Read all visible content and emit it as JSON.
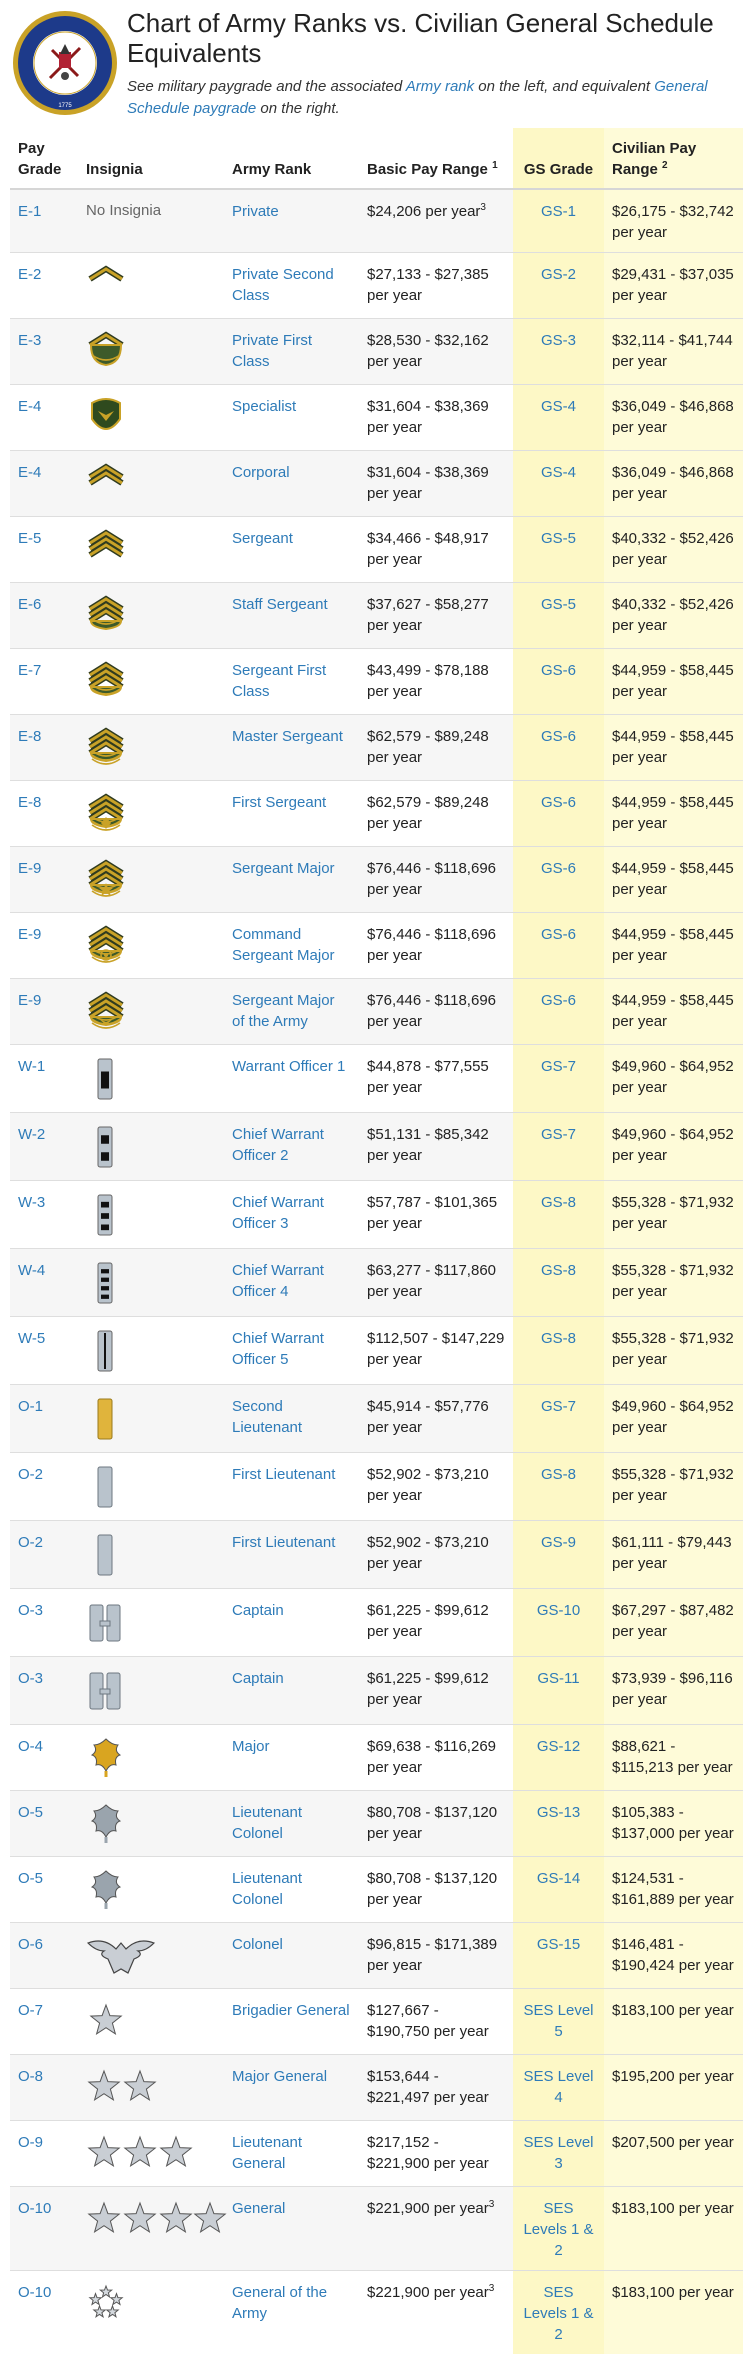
{
  "header": {
    "title": "Chart of Army Ranks vs. Civilian General Schedule Equivalents",
    "subtitle_pre": "See military paygrade and the associated ",
    "subtitle_link1": "Army rank",
    "subtitle_mid": " on the left, and equivalent ",
    "subtitle_link2": "General Schedule paygrade",
    "subtitle_post": " on the right.",
    "seal_text": "DEPARTMENT OF THE ARMY · UNITED STATES OF AMERICA · 1775"
  },
  "columns": {
    "pay_grade": "Pay Grade",
    "insignia": "Insignia",
    "army_rank": "Army Rank",
    "basic_pay": "Basic Pay Range",
    "basic_pay_note": "1",
    "gs_grade": "GS Grade",
    "civilian_pay": "Civilian Pay Range",
    "civilian_pay_note": "2"
  },
  "colors": {
    "link": "#2e7bb8",
    "gs_highlight": "#fdf8c6",
    "row_alt": "#f6f6f6"
  },
  "rows": [
    {
      "grade": "E-1",
      "insignia": "none",
      "insignia_text": "No Insignia",
      "rank": "Private",
      "basic": "$24,206 per year",
      "basic_note": "3",
      "gs": "GS-1",
      "civ": "$26,175 - $32,742 per year"
    },
    {
      "grade": "E-2",
      "insignia": "chevron-1",
      "rank": "Private Second Class",
      "basic": "$27,133 - $27,385 per year",
      "gs": "GS-2",
      "civ": "$29,431 - $37,035 per year"
    },
    {
      "grade": "E-3",
      "insignia": "chevron-1-rocker",
      "rank": "Private First Class",
      "basic": "$28,530 - $32,162 per year",
      "gs": "GS-3",
      "civ": "$32,114 - $41,744 per year"
    },
    {
      "grade": "E-4",
      "insignia": "specialist-eagle",
      "rank": "Specialist",
      "basic": "$31,604 - $38,369 per year",
      "gs": "GS-4",
      "civ": "$36,049 - $46,868 per year"
    },
    {
      "grade": "E-4",
      "insignia": "chevron-2",
      "rank": "Corporal",
      "basic": "$31,604 - $38,369 per year",
      "gs": "GS-4",
      "civ": "$36,049 - $46,868 per year"
    },
    {
      "grade": "E-5",
      "insignia": "chevron-3",
      "rank": "Sergeant",
      "basic": "$34,466 - $48,917 per year",
      "gs": "GS-5",
      "civ": "$40,332 - $52,426 per year"
    },
    {
      "grade": "E-6",
      "insignia": "chevron-3-rocker-1",
      "rank": "Staff Sergeant",
      "basic": "$37,627 - $58,277 per year",
      "gs": "GS-5",
      "civ": "$40,332 - $52,426 per year"
    },
    {
      "grade": "E-7",
      "insignia": "chevron-3-rocker-2",
      "rank": "Sergeant First Class",
      "basic": "$43,499 - $78,188 per year",
      "gs": "GS-6",
      "civ": "$44,959 - $58,445 per year"
    },
    {
      "grade": "E-8",
      "insignia": "chevron-3-rocker-3",
      "rank": "Master Sergeant",
      "basic": "$62,579 - $89,248 per year",
      "gs": "GS-6",
      "civ": "$44,959 - $58,445 per year"
    },
    {
      "grade": "E-8",
      "insignia": "chevron-3-rocker-3-diamond",
      "rank": "First Sergeant",
      "basic": "$62,579 - $89,248 per year",
      "gs": "GS-6",
      "civ": "$44,959 - $58,445 per year"
    },
    {
      "grade": "E-9",
      "insignia": "chevron-3-rocker-3-star",
      "rank": "Sergeant Major",
      "basic": "$76,446 - $118,696 per year",
      "gs": "GS-6",
      "civ": "$44,959 - $58,445 per year"
    },
    {
      "grade": "E-9",
      "insignia": "chevron-3-rocker-3-wreath",
      "rank": "Command Sergeant Major",
      "basic": "$76,446 - $118,696 per year",
      "gs": "GS-6",
      "civ": "$44,959 - $58,445 per year"
    },
    {
      "grade": "E-9",
      "insignia": "chevron-3-rocker-3-eagle",
      "rank": "Sergeant Major of the Army",
      "basic": "$76,446 - $118,696 per year",
      "gs": "GS-6",
      "civ": "$44,959 - $58,445 per year"
    },
    {
      "grade": "W-1",
      "insignia": "warrant-1",
      "rank": "Warrant Officer 1",
      "basic": "$44,878 - $77,555 per year",
      "gs": "GS-7",
      "civ": "$49,960 - $64,952 per year"
    },
    {
      "grade": "W-2",
      "insignia": "warrant-2",
      "rank": "Chief Warrant Officer 2",
      "basic": "$51,131 - $85,342 per year",
      "gs": "GS-7",
      "civ": "$49,960 - $64,952 per year"
    },
    {
      "grade": "W-3",
      "insignia": "warrant-3",
      "rank": "Chief Warrant Officer 3",
      "basic": "$57,787 - $101,365 per year",
      "gs": "GS-8",
      "civ": "$55,328 - $71,932 per year"
    },
    {
      "grade": "W-4",
      "insignia": "warrant-4",
      "rank": "Chief Warrant Officer 4",
      "basic": "$63,277 - $117,860 per year",
      "gs": "GS-8",
      "civ": "$55,328 - $71,932 per year"
    },
    {
      "grade": "W-5",
      "insignia": "warrant-5",
      "rank": "Chief Warrant Officer 5",
      "basic": "$112,507 - $147,229 per year",
      "gs": "GS-8",
      "civ": "$55,328 - $71,932 per year"
    },
    {
      "grade": "O-1",
      "insignia": "bar-gold",
      "rank": "Second Lieutenant",
      "basic": "$45,914 - $57,776 per year",
      "gs": "GS-7",
      "civ": "$49,960 - $64,952 per year"
    },
    {
      "grade": "O-2",
      "insignia": "bar-silver",
      "rank": "First Lieutenant",
      "basic": "$52,902 - $73,210 per year",
      "gs": "GS-8",
      "civ": "$55,328 - $71,932 per year"
    },
    {
      "grade": "O-2",
      "insignia": "bar-silver",
      "rank": "First Lieutenant",
      "basic": "$52,902 - $73,210 per year",
      "gs": "GS-9",
      "civ": "$61,111 - $79,443 per year"
    },
    {
      "grade": "O-3",
      "insignia": "bars-double",
      "rank": "Captain",
      "basic": "$61,225 - $99,612 per year",
      "gs": "GS-10",
      "civ": "$67,297 - $87,482 per year"
    },
    {
      "grade": "O-3",
      "insignia": "bars-double",
      "rank": "Captain",
      "basic": "$61,225 - $99,612 per year",
      "gs": "GS-11",
      "civ": "$73,939 - $96,116 per year"
    },
    {
      "grade": "O-4",
      "insignia": "oak-leaf-gold",
      "rank": "Major",
      "basic": "$69,638 - $116,269 per year",
      "gs": "GS-12",
      "civ": "$88,621 - $115,213 per year"
    },
    {
      "grade": "O-5",
      "insignia": "oak-leaf-silver",
      "rank": "Lieutenant Colonel",
      "basic": "$80,708 - $137,120 per year",
      "gs": "GS-13",
      "civ": "$105,383 - $137,000 per year"
    },
    {
      "grade": "O-5",
      "insignia": "oak-leaf-silver",
      "rank": "Lieutenant Colonel",
      "basic": "$80,708 - $137,120 per year",
      "gs": "GS-14",
      "civ": "$124,531 - $161,889 per year"
    },
    {
      "grade": "O-6",
      "insignia": "eagle",
      "rank": "Colonel",
      "basic": "$96,815 - $171,389 per year",
      "gs": "GS-15",
      "civ": "$146,481 - $190,424 per year"
    },
    {
      "grade": "O-7",
      "insignia": "star-1",
      "rank": "Brigadier General",
      "basic": "$127,667 - $190,750 per year",
      "gs": "SES Level 5",
      "civ": "$183,100 per year"
    },
    {
      "grade": "O-8",
      "insignia": "star-2",
      "rank": "Major General",
      "basic": "$153,644 - $221,497 per year",
      "gs": "SES Level 4",
      "civ": "$195,200 per year"
    },
    {
      "grade": "O-9",
      "insignia": "star-3",
      "rank": "Lieutenant General",
      "basic": "$217,152 - $221,900 per year",
      "gs": "SES Level 3",
      "civ": "$207,500 per year"
    },
    {
      "grade": "O-10",
      "insignia": "star-4",
      "rank": "General",
      "basic": "$221,900 per year",
      "basic_note": "3",
      "gs": "SES Levels 1 & 2",
      "civ": "$183,100 per year"
    },
    {
      "grade": "O-10",
      "insignia": "star-5-circle",
      "rank": "General of the Army",
      "basic": "$221,900 per year",
      "basic_note": "3",
      "gs": "SES Levels 1 & 2",
      "civ": "$183,100 per year"
    }
  ]
}
